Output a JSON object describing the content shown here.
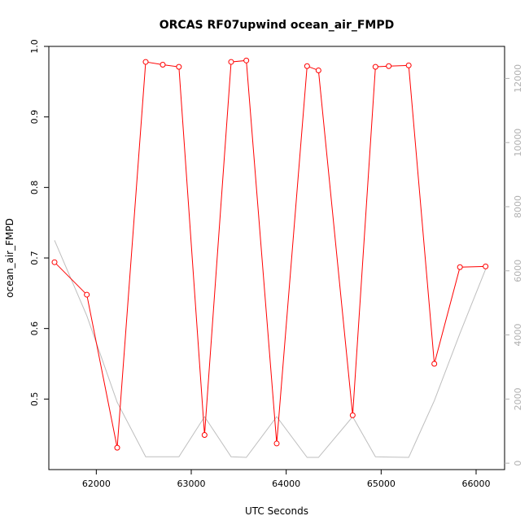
{
  "chart_data": {
    "type": "line",
    "title": "ORCAS RF07upwind ocean_air_FMPD",
    "xlabel": "UTC Seconds",
    "ylabel": "ocean_air_FMPD",
    "xlim": [
      61500,
      66300
    ],
    "ylim": [
      0.4,
      1.0
    ],
    "y2lim": [
      -200,
      13000
    ],
    "x_ticks": [
      62000,
      63000,
      64000,
      65000,
      66000
    ],
    "y_ticks": [
      0.5,
      0.6,
      0.7,
      0.8,
      0.9,
      1.0
    ],
    "y2_ticks": [
      0,
      2000,
      4000,
      6000,
      8000,
      10000,
      12000
    ],
    "series": [
      {
        "color": "#ff0000",
        "style": "line-with-open-circles",
        "axis": "left",
        "x": [
          61560,
          61900,
          62220,
          62520,
          62700,
          62870,
          63140,
          63420,
          63580,
          63900,
          64220,
          64340,
          64700,
          64940,
          65080,
          65290,
          65560,
          65830,
          66100
        ],
        "y": [
          0.694,
          0.648,
          0.431,
          0.978,
          0.974,
          0.971,
          0.449,
          0.978,
          0.98,
          0.437,
          0.972,
          0.966,
          0.477,
          0.971,
          0.972,
          0.973,
          0.55,
          0.687,
          0.688
        ]
      },
      {
        "color": "#bebebe",
        "style": "line",
        "axis": "right",
        "x": [
          61560,
          61900,
          62220,
          62520,
          62700,
          62870,
          63140,
          63420,
          63580,
          63900,
          64220,
          64340,
          64700,
          64940,
          65080,
          65290,
          65560,
          65830,
          66100
        ],
        "y": [
          6950,
          4600,
          1900,
          200,
          200,
          200,
          1450,
          200,
          180,
          1450,
          180,
          180,
          1450,
          200,
          190,
          180,
          1950,
          4050,
          6050
        ]
      }
    ]
  }
}
